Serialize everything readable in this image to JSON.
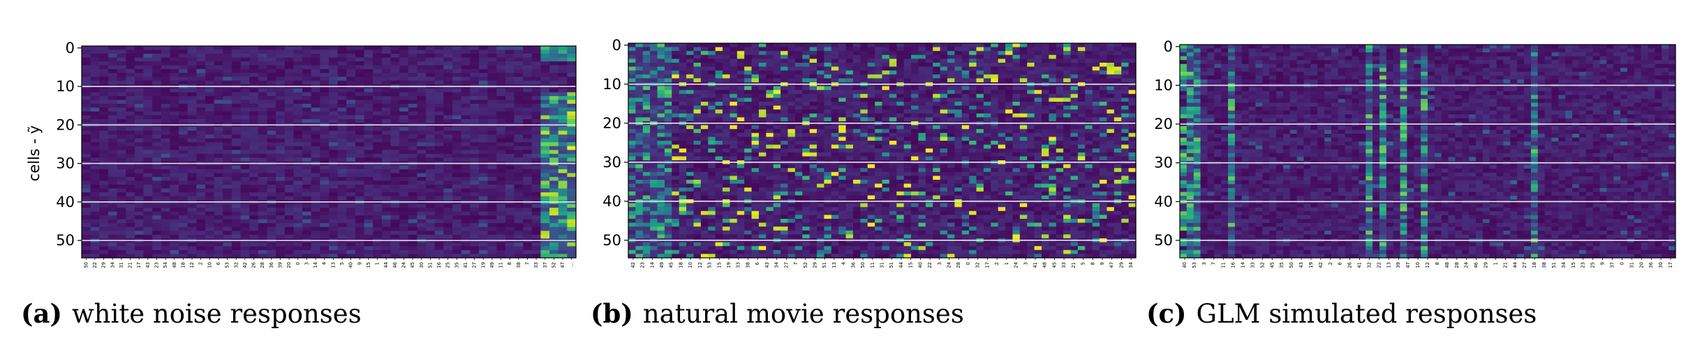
{
  "figure": {
    "ylabel": "cells - ỹ"
  },
  "chart_data": [
    {
      "type": "heatmap",
      "panel_letter": "(a)",
      "caption": "white noise responses",
      "ylabel": "cells - ỹ",
      "y_ticks": [
        0,
        10,
        20,
        30,
        40,
        50
      ],
      "y_range": [
        0,
        54
      ],
      "rows": 55,
      "cols": 56,
      "colormap": "viridis",
      "horizontal_lines_at": [
        10,
        20,
        30,
        40,
        50
      ],
      "x_tick_labels": [
        "50",
        "22",
        "29",
        "34",
        "31",
        "21",
        "17",
        "43",
        "23",
        "54",
        "48",
        "18",
        "12",
        "2",
        "10",
        "6",
        "53",
        "32",
        "42",
        "26",
        "28",
        "36",
        "39",
        "20",
        "0",
        "3",
        "14",
        "4",
        "13",
        "5",
        "40",
        "9",
        "15",
        "1",
        "44",
        "46",
        "24",
        "45",
        "30",
        "51",
        "16",
        "25",
        "35",
        "41",
        "27",
        "19",
        "49",
        "11",
        "8",
        "38",
        "7",
        "33",
        "37",
        "52",
        "47",
        "..."
      ],
      "pattern": "mostly low responses; strong bright activity concentrated in the last ~4 columns (rows 12-54)"
    },
    {
      "type": "heatmap",
      "panel_letter": "(b)",
      "caption": "natural movie responses",
      "y_ticks": [
        0,
        10,
        20,
        30,
        40,
        50
      ],
      "y_range": [
        0,
        54
      ],
      "rows": 55,
      "cols": 70,
      "colormap": "viridis",
      "horizontal_lines_at": [
        10,
        20,
        30,
        40,
        50
      ],
      "x_tick_labels": [
        "42",
        "23",
        "14",
        "49",
        "45",
        "18",
        "10",
        "12",
        "53",
        "15",
        "19",
        "33",
        "38",
        "6",
        "43",
        "34",
        "27",
        "7",
        "52",
        "29",
        "51",
        "13",
        "4",
        "36",
        "50",
        "11",
        "31",
        "51",
        "44",
        "15",
        "40",
        "22",
        "3",
        "24",
        "28",
        "0",
        "32",
        "17",
        "2",
        "1",
        "24",
        "3",
        "41",
        "48",
        "45",
        "33",
        "21",
        "5",
        "8",
        "9",
        "47",
        "29",
        "34"
      ],
      "pattern": "sparse high-contrast responses scattered across cells and stimuli; dense activity in left columns"
    },
    {
      "type": "heatmap",
      "panel_letter": "(c)",
      "caption": "GLM simulated responses",
      "y_ticks": [
        0,
        10,
        20,
        30,
        40,
        50
      ],
      "y_range": [
        0,
        54
      ],
      "rows": 55,
      "cols": 72,
      "colormap": "viridis",
      "horizontal_lines_at": [
        10,
        20,
        30,
        40,
        50
      ],
      "x_tick_labels": [
        "40",
        "53",
        "3",
        "7",
        "11",
        "16",
        "14",
        "33",
        "52",
        "45",
        "35",
        "50",
        "43",
        "19",
        "42",
        "2",
        "6",
        "26",
        "41",
        "32",
        "22",
        "13",
        "39",
        "47",
        "10",
        "12",
        "8",
        "48",
        "28",
        "24",
        "46",
        "29",
        "1",
        "21",
        "44",
        "27",
        "18",
        "38",
        "51",
        "34",
        "15",
        "23",
        "25",
        "9",
        "37",
        "0",
        "31",
        "20",
        "36",
        "30",
        "17"
      ],
      "pattern": "low overall activity with several bright vertical stripes (columns responding across many cells)"
    }
  ]
}
